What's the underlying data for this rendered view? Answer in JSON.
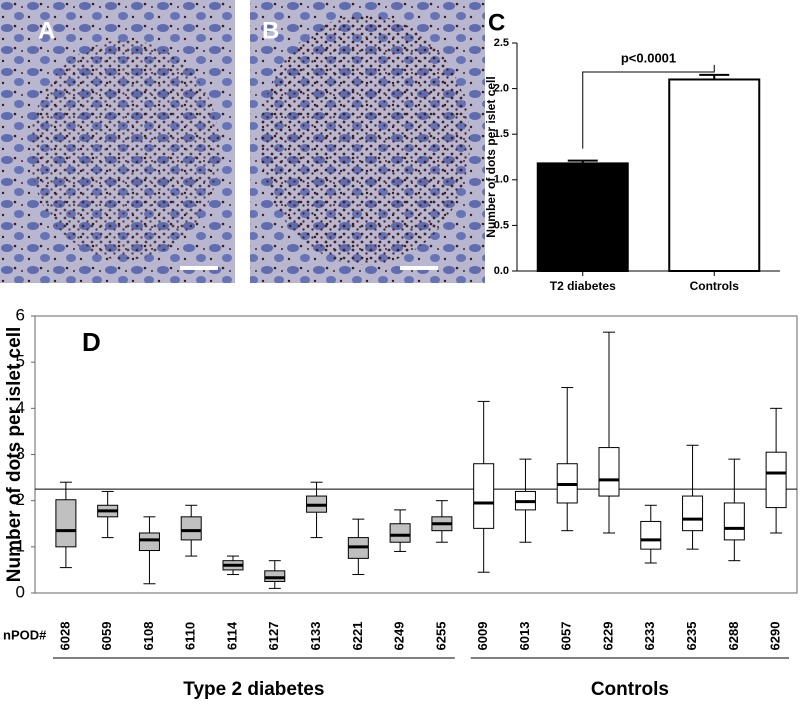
{
  "images": [
    {
      "label": "A"
    },
    {
      "label": "B"
    }
  ],
  "chart_data": [
    {
      "type": "bar",
      "label": "C",
      "annotation": "p<0.0001",
      "ylabel": "Number of dots per islet cell",
      "categories": [
        "T2 diabetes",
        "Controls"
      ],
      "values": [
        1.18,
        2.1
      ],
      "errors": [
        0.03,
        0.05
      ],
      "colors": [
        "#000000",
        "#ffffff"
      ],
      "ylim": [
        0,
        2.5
      ],
      "yticks": [
        {
          "value": 0,
          "label": "0.0"
        },
        {
          "value": 0.5,
          "label": "0.5"
        },
        {
          "value": 1,
          "label": "1.0"
        },
        {
          "value": 1.5,
          "label": "1.5"
        },
        {
          "value": 2,
          "label": "2.0"
        },
        {
          "value": 2.5,
          "label": "2.5"
        }
      ]
    },
    {
      "type": "box",
      "label": "D",
      "ylabel": "Number of dots per islet cell",
      "xlabel": "nPOD#",
      "ylim": [
        0,
        6
      ],
      "yticks": [
        0,
        1,
        2,
        3,
        4,
        5,
        6
      ],
      "reference_line": 2.25,
      "groups": [
        {
          "name": "Type 2 diabetes",
          "color": "#c0c0c0",
          "categories": [
            "6028",
            "6059",
            "6108",
            "6110",
            "6114",
            "6127",
            "6133",
            "6221",
            "6249",
            "6255"
          ],
          "boxes": [
            {
              "min": 0.55,
              "q1": 1.0,
              "median": 1.35,
              "q3": 2.02,
              "max": 2.4
            },
            {
              "min": 1.2,
              "q1": 1.65,
              "median": 1.78,
              "q3": 1.9,
              "max": 2.2
            },
            {
              "min": 0.2,
              "q1": 0.92,
              "median": 1.15,
              "q3": 1.3,
              "max": 1.65
            },
            {
              "min": 0.8,
              "q1": 1.15,
              "median": 1.35,
              "q3": 1.65,
              "max": 1.9
            },
            {
              "min": 0.4,
              "q1": 0.5,
              "median": 0.6,
              "q3": 0.7,
              "max": 0.8
            },
            {
              "min": 0.1,
              "q1": 0.25,
              "median": 0.33,
              "q3": 0.48,
              "max": 0.7
            },
            {
              "min": 1.2,
              "q1": 1.75,
              "median": 1.9,
              "q3": 2.1,
              "max": 2.4
            },
            {
              "min": 0.4,
              "q1": 0.75,
              "median": 1.0,
              "q3": 1.2,
              "max": 1.6
            },
            {
              "min": 0.9,
              "q1": 1.1,
              "median": 1.25,
              "q3": 1.5,
              "max": 1.8
            },
            {
              "min": 1.1,
              "q1": 1.35,
              "median": 1.5,
              "q3": 1.65,
              "max": 2.0
            }
          ]
        },
        {
          "name": "Controls",
          "color": "#ffffff",
          "categories": [
            "6009",
            "6013",
            "6057",
            "6229",
            "6233",
            "6235",
            "6288",
            "6290"
          ],
          "boxes": [
            {
              "min": 0.45,
              "q1": 1.4,
              "median": 1.95,
              "q3": 2.8,
              "max": 4.15
            },
            {
              "min": 1.1,
              "q1": 1.8,
              "median": 1.98,
              "q3": 2.2,
              "max": 2.9
            },
            {
              "min": 1.35,
              "q1": 1.95,
              "median": 2.35,
              "q3": 2.8,
              "max": 4.45
            },
            {
              "min": 1.3,
              "q1": 2.1,
              "median": 2.45,
              "q3": 3.15,
              "max": 5.65
            },
            {
              "min": 0.65,
              "q1": 0.95,
              "median": 1.15,
              "q3": 1.55,
              "max": 1.9
            },
            {
              "min": 0.95,
              "q1": 1.35,
              "median": 1.6,
              "q3": 2.1,
              "max": 3.2
            },
            {
              "min": 0.7,
              "q1": 1.15,
              "median": 1.4,
              "q3": 1.95,
              "max": 2.9
            },
            {
              "min": 1.3,
              "q1": 1.85,
              "median": 2.6,
              "q3": 3.05,
              "max": 4.0
            }
          ]
        }
      ]
    }
  ]
}
